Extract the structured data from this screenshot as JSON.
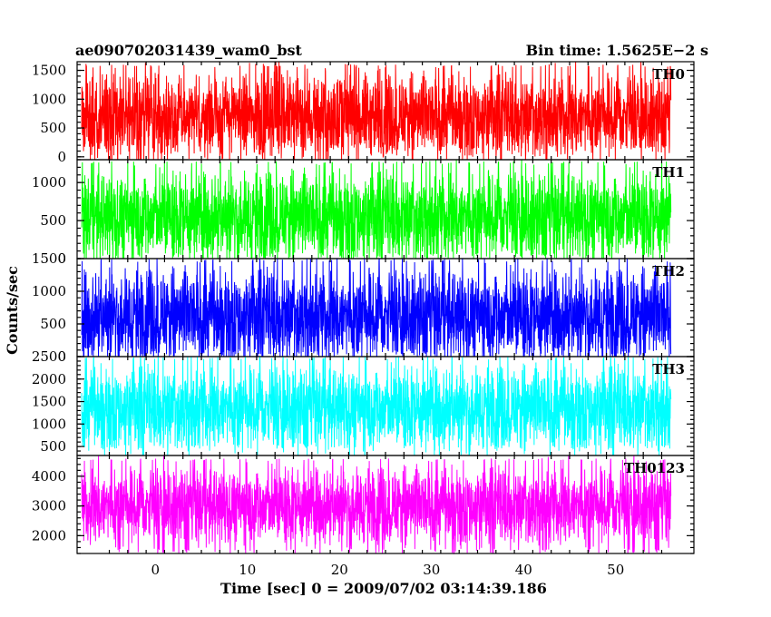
{
  "chart_data": {
    "type": "line",
    "title_left": "ae090702031439_wam0_bst",
    "title_right": "Bin time: 1.5625E−2 s",
    "xlabel": "Time [sec] 0 = 2009/07/02 03:14:39.186",
    "ylabel": "Counts/sec",
    "xlim": [
      -8.5,
      58.5
    ],
    "x_data_range": [
      -8,
      56
    ],
    "bin_time": 0.015625,
    "x_ticks": [
      0,
      10,
      20,
      30,
      40,
      50
    ],
    "x_tick_labels": [
      "0",
      "10",
      "20",
      "30",
      "40",
      "50"
    ],
    "panels": [
      {
        "name": "TH0",
        "color": "#ff0000",
        "ylim": [
          -50,
          1650
        ],
        "y_ticks": [
          0,
          500,
          1000,
          1500
        ],
        "y_tick_labels": [
          "0",
          "500",
          "1000",
          "1500"
        ],
        "approx_mean": 700,
        "approx_min": 150,
        "approx_max": 1600
      },
      {
        "name": "TH1",
        "color": "#00ff00",
        "ylim": [
          0,
          1300
        ],
        "y_ticks": [
          0,
          500,
          1000
        ],
        "y_tick_labels": [
          "0",
          "500",
          "1000"
        ],
        "approx_mean": 550,
        "approx_min": 20,
        "approx_max": 1280
      },
      {
        "name": "TH2",
        "color": "#0000ff",
        "ylim": [
          0,
          1500
        ],
        "y_ticks": [
          0,
          500,
          1000,
          1500
        ],
        "y_tick_labels": [
          "0",
          "500",
          "1000",
          "1500"
        ],
        "approx_mean": 620,
        "approx_min": 30,
        "approx_max": 1500
      },
      {
        "name": "TH3",
        "color": "#00ffff",
        "ylim": [
          300,
          2500
        ],
        "y_ticks": [
          500,
          1000,
          1500,
          2000,
          2500
        ],
        "y_tick_labels": [
          "500",
          "1000",
          "1500",
          "2000",
          "2500"
        ],
        "approx_mean": 1350,
        "approx_min": 450,
        "approx_max": 2500
      },
      {
        "name": "TH0123",
        "color": "#ff00ff",
        "ylim": [
          1400,
          4700
        ],
        "y_ticks": [
          2000,
          3000,
          4000
        ],
        "y_tick_labels": [
          "2000",
          "3000",
          "4000"
        ],
        "approx_mean": 3000,
        "approx_min": 1400,
        "approx_max": 4600
      }
    ]
  }
}
